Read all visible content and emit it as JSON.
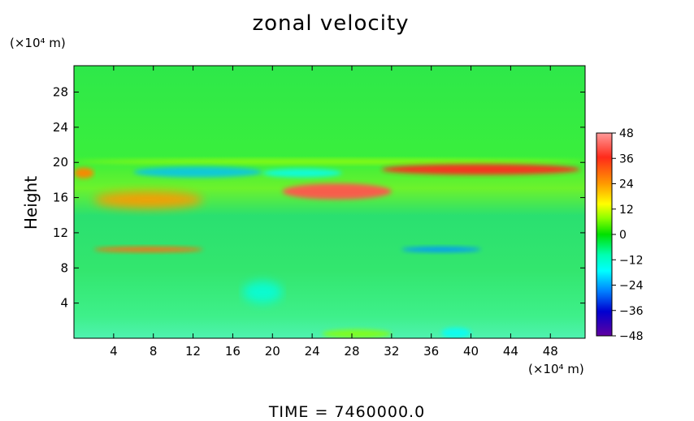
{
  "chart_data": {
    "type": "heatmap",
    "title": "zonal velocity",
    "ylabel": "Height",
    "xlabel": "",
    "x_unit": "(×10⁴ m)",
    "y_unit": "(×10⁴ m)",
    "xlim": [
      0,
      51.5
    ],
    "ylim": [
      0,
      31
    ],
    "x_ticks": [
      4,
      8,
      12,
      16,
      20,
      24,
      28,
      32,
      36,
      40,
      44,
      48
    ],
    "y_ticks": [
      4,
      8,
      12,
      16,
      20,
      24,
      28
    ],
    "colorbar": {
      "ticks": [
        48,
        36,
        24,
        12,
        0,
        -12,
        -24,
        -36,
        -48
      ],
      "tick_labels": [
        "48",
        "36",
        "24",
        "12",
        "0",
        "−12",
        "−24",
        "−36",
        "−48"
      ],
      "range": [
        -48,
        48
      ]
    },
    "features": [
      {
        "x": [
          0,
          51.5
        ],
        "y": [
          19.9,
          20.3
        ],
        "value": 14
      },
      {
        "x": [
          31,
          51
        ],
        "y": [
          18.6,
          19.8
        ],
        "value": 38
      },
      {
        "x": [
          0,
          2
        ],
        "y": [
          18.2,
          19.4
        ],
        "value": 30
      },
      {
        "x": [
          6,
          19
        ],
        "y": [
          18.3,
          19.5
        ],
        "value": -18
      },
      {
        "x": [
          19,
          27
        ],
        "y": [
          18.3,
          19.3
        ],
        "value": -12
      },
      {
        "x": [
          21,
          32
        ],
        "y": [
          15.8,
          17.6
        ],
        "value": 42
      },
      {
        "x": [
          2,
          13
        ],
        "y": [
          14.8,
          16.7
        ],
        "value": 28
      },
      {
        "x": [
          2,
          13
        ],
        "y": [
          9.8,
          10.4
        ],
        "value": 32
      },
      {
        "x": [
          33,
          41
        ],
        "y": [
          9.8,
          10.4
        ],
        "value": -22
      },
      {
        "x": [
          17,
          21
        ],
        "y": [
          4,
          6.5
        ],
        "value": -10
      },
      {
        "x": [
          37,
          40
        ],
        "y": [
          0,
          1.2
        ],
        "value": -12
      },
      {
        "x": [
          25,
          32
        ],
        "y": [
          0,
          1
        ],
        "value": 12
      }
    ],
    "grid": false
  },
  "footer": {
    "time_label": "TIME  =  7460000.0"
  }
}
